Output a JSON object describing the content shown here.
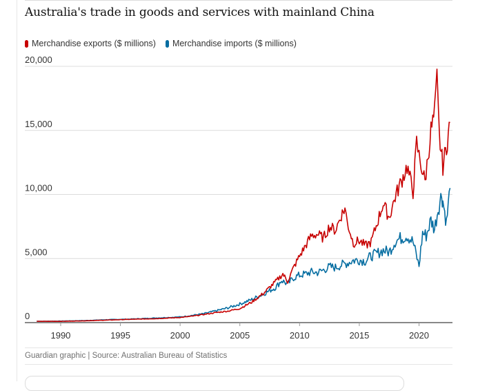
{
  "title": "Australia's trade in goods and services with mainland China",
  "source": "Guardian graphic | Source: Australian Bureau of Statistics",
  "chart_data": {
    "type": "line",
    "title": "Australia's trade in goods and services with mainland China",
    "xlabel": "",
    "ylabel": "",
    "xlim": [
      1987,
      2022.8
    ],
    "ylim": [
      0,
      20000
    ],
    "x_ticks": [
      1990,
      1995,
      2000,
      2005,
      2010,
      2015,
      2020
    ],
    "y_ticks": [
      0,
      5000,
      10000,
      15000,
      20000
    ],
    "y_tick_labels": [
      "0",
      "5,000",
      "10,000",
      "15,000",
      "20,000"
    ],
    "grid": "horizontal",
    "legend": "top-left",
    "colors": {
      "exports": "#c70000",
      "imports": "#056da1"
    },
    "series": [
      {
        "name": "Merchandise exports ($ millions)",
        "x": [
          1988,
          1990,
          1992,
          1994,
          1996,
          1998,
          2000,
          2001,
          2002,
          2003,
          2004,
          2005,
          2006,
          2007,
          2008,
          2008.6,
          2009,
          2009.5,
          2010,
          2010.5,
          2011,
          2011.5,
          2012,
          2012.5,
          2013,
          2013.5,
          2013.8,
          2014,
          2014.5,
          2015,
          2015.5,
          2016,
          2016.5,
          2017,
          2017.5,
          2018,
          2018.5,
          2019,
          2019.5,
          2019.8,
          2020,
          2020.5,
          2021,
          2021.3,
          2021.5,
          2021.7,
          2022,
          2022.3,
          2022.6
        ],
        "y": [
          100,
          100,
          140,
          200,
          260,
          310,
          400,
          500,
          640,
          780,
          900,
          1100,
          1600,
          2300,
          3200,
          3800,
          3200,
          4300,
          5200,
          6000,
          6800,
          6900,
          6600,
          7500,
          7200,
          8400,
          8900,
          7800,
          6200,
          6400,
          6000,
          6300,
          7800,
          9300,
          8200,
          9800,
          11000,
          12200,
          10200,
          14000,
          13000,
          11000,
          15000,
          16200,
          18900,
          14500,
          12200,
          13800,
          15600
        ]
      },
      {
        "name": "Merchandise imports ($ millions)",
        "x": [
          1988,
          1990,
          1992,
          1994,
          1996,
          1998,
          2000,
          2001,
          2002,
          2003,
          2004,
          2005,
          2006,
          2007,
          2008,
          2008.5,
          2009,
          2009.5,
          2010,
          2010.5,
          2011,
          2011.5,
          2012,
          2012.5,
          2013,
          2013.5,
          2014,
          2014.5,
          2015,
          2015.5,
          2016,
          2016.5,
          2017,
          2017.5,
          2018,
          2018.5,
          2019,
          2019.5,
          2020,
          2020.3,
          2020.6,
          2021,
          2021.3,
          2021.6,
          2021.9,
          2022,
          2022.3,
          2022.6
        ],
        "y": [
          100,
          120,
          160,
          230,
          280,
          360,
          440,
          560,
          700,
          920,
          1150,
          1450,
          1800,
          2250,
          2750,
          3300,
          3000,
          3500,
          3700,
          3800,
          3950,
          3900,
          4100,
          4350,
          4300,
          4500,
          4650,
          4850,
          4900,
          4800,
          5200,
          5400,
          5650,
          5500,
          6350,
          6600,
          6800,
          6300,
          4400,
          7000,
          6800,
          8000,
          7300,
          8900,
          10000,
          9500,
          7800,
          10500
        ]
      }
    ]
  }
}
